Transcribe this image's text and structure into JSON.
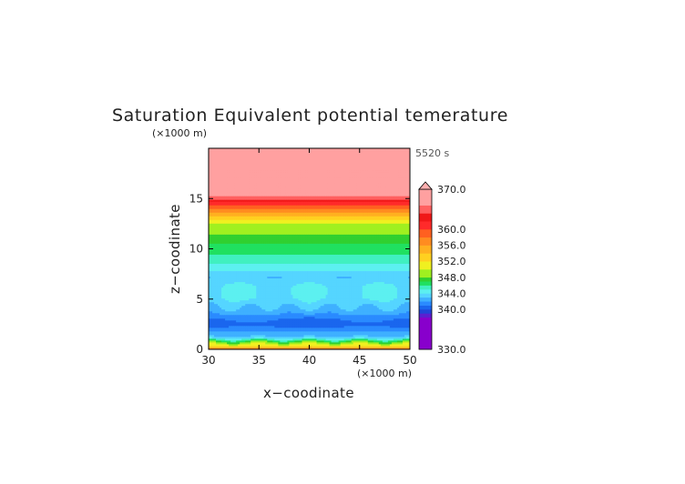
{
  "chart_data": {
    "type": "heatmap",
    "title": "Saturation Equivalent potential temerature",
    "xlabel": "x−coodinate",
    "ylabel": "z−coodinate",
    "x_unit": "(×1000 m)",
    "y_unit": "(×1000 m)",
    "time_label": "5520 s",
    "xlim": [
      30,
      50
    ],
    "ylim": [
      0,
      20
    ],
    "x_ticks": [
      30,
      35,
      40,
      45,
      50
    ],
    "y_ticks": [
      0,
      5,
      10,
      15
    ],
    "colorbar": {
      "min": 330,
      "max": 370,
      "labels": [
        "370.0",
        "360.0",
        "356.0",
        "352.0",
        "348.0",
        "344.0",
        "340.0",
        "330.0"
      ],
      "label_values": [
        370,
        360,
        356,
        352,
        348,
        344,
        340,
        330
      ],
      "extend": "max",
      "colors": [
        "#8800cc",
        "#5c1fd0",
        "#2244d8",
        "#1a66ee",
        "#2a8bff",
        "#3fb0ff",
        "#55d5ff",
        "#5cf0f0",
        "#40f0c0",
        "#20e060",
        "#30d030",
        "#a0f020",
        "#f0f020",
        "#ffd020",
        "#ffb020",
        "#ff8c20",
        "#ff6020",
        "#ff2a2a",
        "#f01818",
        "#ff6060",
        "#ffa0a0"
      ],
      "color_bounds": [
        330,
        338,
        339,
        340,
        341,
        342,
        343,
        344,
        345,
        346,
        347,
        348,
        350,
        352,
        354,
        356,
        358,
        360,
        362,
        364,
        366,
        370
      ]
    },
    "z_levels_km": [
      0.0,
      0.2,
      0.5,
      0.8,
      1.2,
      1.8,
      2.5,
      3.3,
      4.2,
      5.2,
      6.2,
      7.3,
      8.5,
      9.5,
      10.5,
      11.5,
      12.5,
      13.3,
      14.0,
      14.7,
      15.3,
      20.0
    ],
    "theta_profile_K": [
      360,
      354,
      349,
      346,
      343,
      342,
      341,
      342,
      343,
      344,
      344,
      343,
      345,
      346,
      347,
      348,
      350,
      354,
      358,
      362,
      366,
      368
    ]
  }
}
